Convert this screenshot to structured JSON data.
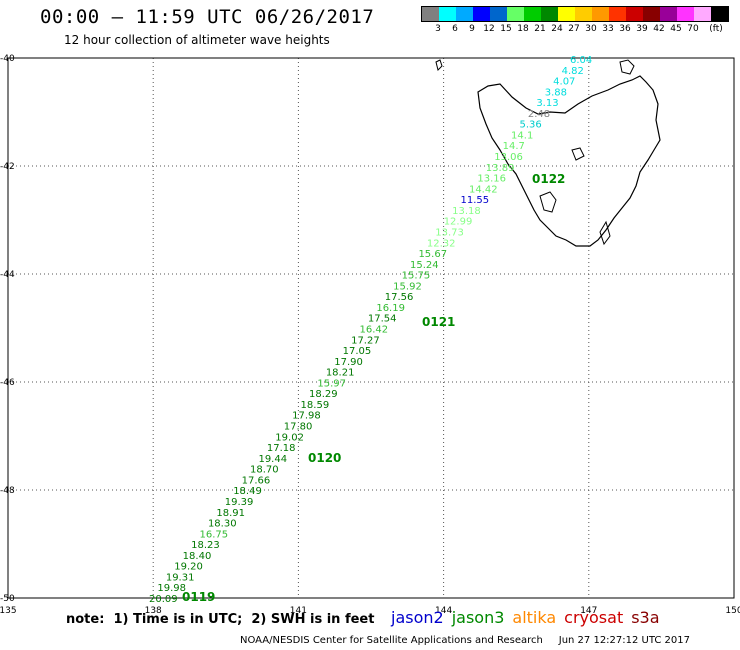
{
  "header": {
    "title": "00:00 – 11:59 UTC 06/26/2017",
    "subtitle": "12 hour collection of altimeter wave heights"
  },
  "legend": {
    "colors": [
      "#808080",
      "#00ffff",
      "#00aaff",
      "#0000ff",
      "#0066cc",
      "#66ff66",
      "#00cc00",
      "#008800",
      "#ffff00",
      "#ffcc00",
      "#ff9900",
      "#ff3300",
      "#cc0000",
      "#880000",
      "#990099",
      "#ff33ff",
      "#ffaaff",
      "#000000"
    ],
    "labels": [
      "3",
      "6",
      "9",
      "12",
      "15",
      "18",
      "21",
      "24",
      "27",
      "30",
      "33",
      "36",
      "39",
      "42",
      "45",
      "70",
      "(ft)"
    ]
  },
  "map": {
    "lon_range": [
      135,
      150
    ],
    "lat_range": [
      -50,
      -40
    ],
    "lon_ticks": [
      "135",
      "138",
      "141",
      "144",
      "147",
      "150"
    ],
    "lat_ticks": [
      "-40",
      "-42",
      "-44",
      "-46",
      "-48",
      "-50"
    ]
  },
  "track_points": [
    {
      "v": "6.04",
      "c": "#00dddd"
    },
    {
      "v": "4.82",
      "c": "#00dddd"
    },
    {
      "v": "4.07",
      "c": "#00dddd"
    },
    {
      "v": "3.88",
      "c": "#00dddd"
    },
    {
      "v": "3.13",
      "c": "#00dddd"
    },
    {
      "v": "2.48",
      "c": "#808080"
    },
    {
      "v": "5.36",
      "c": "#00cccc"
    },
    {
      "v": "14.1",
      "c": "#66ee66"
    },
    {
      "v": "14.7",
      "c": "#66ee66"
    },
    {
      "v": "13.06",
      "c": "#66ee66"
    },
    {
      "v": "13.89",
      "c": "#66ee66"
    },
    {
      "v": "13.16",
      "c": "#66ee66"
    },
    {
      "v": "14.42",
      "c": "#66ee66"
    },
    {
      "v": "11.55",
      "c": "#0000cc"
    },
    {
      "v": "13.18",
      "c": "#88ff88"
    },
    {
      "v": "12.99",
      "c": "#88ff88"
    },
    {
      "v": "13.73",
      "c": "#88ff88"
    },
    {
      "v": "12.32",
      "c": "#88ff88"
    },
    {
      "v": "15.67",
      "c": "#33bb33"
    },
    {
      "v": "15.24",
      "c": "#33bb33"
    },
    {
      "v": "15.75",
      "c": "#33bb33"
    },
    {
      "v": "15.92",
      "c": "#33bb33"
    },
    {
      "v": "17.56",
      "c": "#007700"
    },
    {
      "v": "16.19",
      "c": "#33bb33"
    },
    {
      "v": "17.54",
      "c": "#007700"
    },
    {
      "v": "16.42",
      "c": "#33bb33"
    },
    {
      "v": "17.27",
      "c": "#007700"
    },
    {
      "v": "17.05",
      "c": "#007700"
    },
    {
      "v": "17.90",
      "c": "#007700"
    },
    {
      "v": "18.21",
      "c": "#007700"
    },
    {
      "v": "15.97",
      "c": "#33bb33"
    },
    {
      "v": "18.29",
      "c": "#007700"
    },
    {
      "v": "18.59",
      "c": "#007700"
    },
    {
      "v": "17.98",
      "c": "#007700"
    },
    {
      "v": "17.80",
      "c": "#007700"
    },
    {
      "v": "19.02",
      "c": "#007700"
    },
    {
      "v": "17.18",
      "c": "#007700"
    },
    {
      "v": "19.44",
      "c": "#007700"
    },
    {
      "v": "18.70",
      "c": "#007700"
    },
    {
      "v": "17.66",
      "c": "#007700"
    },
    {
      "v": "18.49",
      "c": "#007700"
    },
    {
      "v": "19.39",
      "c": "#007700"
    },
    {
      "v": "18.91",
      "c": "#007700"
    },
    {
      "v": "18.30",
      "c": "#007700"
    },
    {
      "v": "16.75",
      "c": "#33bb33"
    },
    {
      "v": "18.23",
      "c": "#007700"
    },
    {
      "v": "18.40",
      "c": "#007700"
    },
    {
      "v": "19.20",
      "c": "#007700"
    },
    {
      "v": "19.31",
      "c": "#007700"
    },
    {
      "v": "19.98",
      "c": "#007700"
    },
    {
      "v": "20.09",
      "c": "#007700"
    }
  ],
  "time_labels": [
    "0122",
    "0121",
    "0120",
    "0119"
  ],
  "satellites": [
    {
      "name": "jason2",
      "color": "#0000cc"
    },
    {
      "name": "jason3",
      "color": "#008800"
    },
    {
      "name": "altika",
      "color": "#ff8800"
    },
    {
      "name": "cryosat",
      "color": "#cc0000"
    },
    {
      "name": "s3a",
      "color": "#880000"
    }
  ],
  "footer": {
    "note": "note:  1) Time is in UTC;  2) SWH is in feet",
    "credit": "NOAA/NESDIS Center for Satellite Applications and Research     Jun 27 12:27:12 UTC 2017"
  }
}
